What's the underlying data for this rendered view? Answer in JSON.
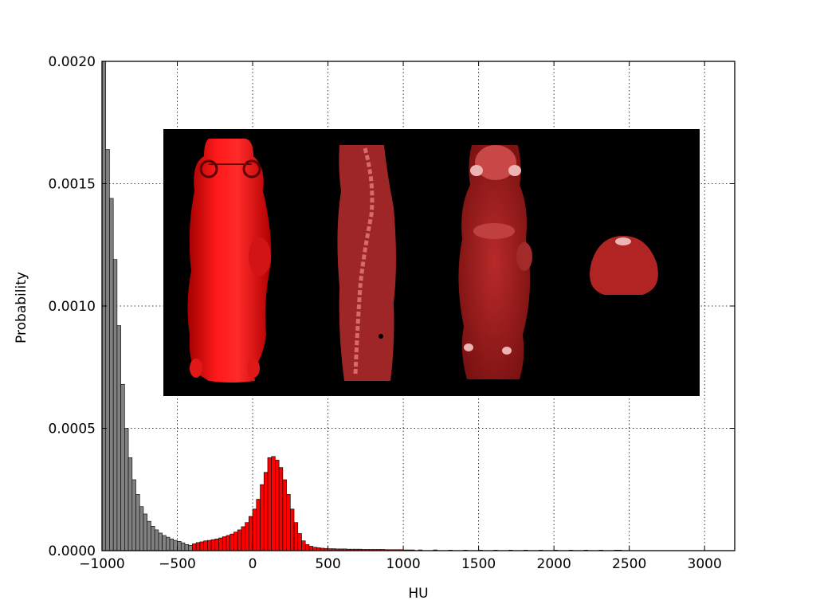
{
  "chart_data": {
    "type": "bar",
    "title": "",
    "xlabel": "HU",
    "ylabel": "Probability",
    "xlim": [
      -1000,
      3200
    ],
    "ylim": [
      0,
      0.002
    ],
    "xticks": [
      -1000,
      -500,
      0,
      500,
      1000,
      1500,
      2000,
      2500,
      3000
    ],
    "xtick_labels": [
      "−1000",
      "−500",
      "0",
      "500",
      "1000",
      "1500",
      "2000",
      "2500",
      "3000"
    ],
    "yticks": [
      0,
      0.0005,
      0.001,
      0.0015,
      0.002
    ],
    "ytick_labels": [
      "0.0000",
      "0.0005",
      "0.0010",
      "0.0015",
      "0.0020"
    ],
    "grid": true,
    "bin_width": 25,
    "red_threshold": -400,
    "colors": {
      "low_bins": "#808080",
      "high_bins": "#ff0000",
      "bar_edge": "#000000"
    },
    "bins": [
      {
        "x": -1000,
        "y": 0.002
      },
      {
        "x": -975,
        "y": 0.00164
      },
      {
        "x": -950,
        "y": 0.00144
      },
      {
        "x": -925,
        "y": 0.00119
      },
      {
        "x": -900,
        "y": 0.00092
      },
      {
        "x": -875,
        "y": 0.00068
      },
      {
        "x": -850,
        "y": 0.0005
      },
      {
        "x": -825,
        "y": 0.00038
      },
      {
        "x": -800,
        "y": 0.00029
      },
      {
        "x": -775,
        "y": 0.00023
      },
      {
        "x": -750,
        "y": 0.00018
      },
      {
        "x": -725,
        "y": 0.00015
      },
      {
        "x": -700,
        "y": 0.00012
      },
      {
        "x": -675,
        "y": 0.0001
      },
      {
        "x": -650,
        "y": 8.5e-05
      },
      {
        "x": -625,
        "y": 7.2e-05
      },
      {
        "x": -600,
        "y": 6.2e-05
      },
      {
        "x": -575,
        "y": 5.5e-05
      },
      {
        "x": -550,
        "y": 4.8e-05
      },
      {
        "x": -525,
        "y": 4.2e-05
      },
      {
        "x": -500,
        "y": 3.8e-05
      },
      {
        "x": -475,
        "y": 3.2e-05
      },
      {
        "x": -450,
        "y": 2.5e-05
      },
      {
        "x": -425,
        "y": 2.2e-05
      },
      {
        "x": -400,
        "y": 2.8e-05
      },
      {
        "x": -375,
        "y": 3.3e-05
      },
      {
        "x": -350,
        "y": 3.6e-05
      },
      {
        "x": -325,
        "y": 4e-05
      },
      {
        "x": -300,
        "y": 4.2e-05
      },
      {
        "x": -275,
        "y": 4.5e-05
      },
      {
        "x": -250,
        "y": 4.8e-05
      },
      {
        "x": -225,
        "y": 5.2e-05
      },
      {
        "x": -200,
        "y": 5.7e-05
      },
      {
        "x": -175,
        "y": 6.2e-05
      },
      {
        "x": -150,
        "y": 6.8e-05
      },
      {
        "x": -125,
        "y": 7.6e-05
      },
      {
        "x": -100,
        "y": 8.5e-05
      },
      {
        "x": -75,
        "y": 9.8e-05
      },
      {
        "x": -50,
        "y": 0.000115
      },
      {
        "x": -25,
        "y": 0.00014
      },
      {
        "x": 0,
        "y": 0.00017
      },
      {
        "x": 25,
        "y": 0.00021
      },
      {
        "x": 50,
        "y": 0.00027
      },
      {
        "x": 75,
        "y": 0.00032
      },
      {
        "x": 100,
        "y": 0.00038
      },
      {
        "x": 125,
        "y": 0.000385
      },
      {
        "x": 150,
        "y": 0.00037
      },
      {
        "x": 175,
        "y": 0.00034
      },
      {
        "x": 200,
        "y": 0.00029
      },
      {
        "x": 225,
        "y": 0.00023
      },
      {
        "x": 250,
        "y": 0.00017
      },
      {
        "x": 275,
        "y": 0.000115
      },
      {
        "x": 300,
        "y": 7e-05
      },
      {
        "x": 325,
        "y": 4e-05
      },
      {
        "x": 350,
        "y": 2.5e-05
      },
      {
        "x": 375,
        "y": 1.8e-05
      },
      {
        "x": 400,
        "y": 1.4e-05
      },
      {
        "x": 425,
        "y": 1.2e-05
      },
      {
        "x": 450,
        "y": 1e-05
      },
      {
        "x": 475,
        "y": 9e-06
      },
      {
        "x": 500,
        "y": 8e-06
      },
      {
        "x": 525,
        "y": 8e-06
      },
      {
        "x": 550,
        "y": 7e-06
      },
      {
        "x": 575,
        "y": 7e-06
      },
      {
        "x": 600,
        "y": 7e-06
      },
      {
        "x": 625,
        "y": 6e-06
      },
      {
        "x": 650,
        "y": 6e-06
      },
      {
        "x": 675,
        "y": 6e-06
      },
      {
        "x": 700,
        "y": 6e-06
      },
      {
        "x": 725,
        "y": 5e-06
      },
      {
        "x": 750,
        "y": 5e-06
      },
      {
        "x": 775,
        "y": 5e-06
      },
      {
        "x": 800,
        "y": 5e-06
      },
      {
        "x": 825,
        "y": 5e-06
      },
      {
        "x": 850,
        "y": 5e-06
      },
      {
        "x": 875,
        "y": 4e-06
      },
      {
        "x": 900,
        "y": 4e-06
      },
      {
        "x": 925,
        "y": 4e-06
      },
      {
        "x": 950,
        "y": 4e-06
      },
      {
        "x": 975,
        "y": 4e-06
      },
      {
        "x": 1000,
        "y": 3e-06
      },
      {
        "x": 1025,
        "y": 3e-06
      },
      {
        "x": 1050,
        "y": 3e-06
      },
      {
        "x": 1100,
        "y": 3e-06
      },
      {
        "x": 1200,
        "y": 3e-06
      },
      {
        "x": 1300,
        "y": 2e-06
      },
      {
        "x": 1400,
        "y": 2e-06
      },
      {
        "x": 1500,
        "y": 2e-06
      },
      {
        "x": 1600,
        "y": 2e-06
      },
      {
        "x": 1700,
        "y": 2e-06
      },
      {
        "x": 1800,
        "y": 2e-06
      },
      {
        "x": 1900,
        "y": 2e-06
      },
      {
        "x": 2000,
        "y": 2e-06
      },
      {
        "x": 2100,
        "y": 2e-06
      },
      {
        "x": 2200,
        "y": 2e-06
      },
      {
        "x": 2300,
        "y": 2e-06
      },
      {
        "x": 2400,
        "y": 2e-06
      },
      {
        "x": 2425,
        "y": 2e-06
      }
    ],
    "inset_views": [
      "3d-surface-render",
      "sagittal-slice",
      "coronal-slice",
      "axial-slice"
    ]
  }
}
